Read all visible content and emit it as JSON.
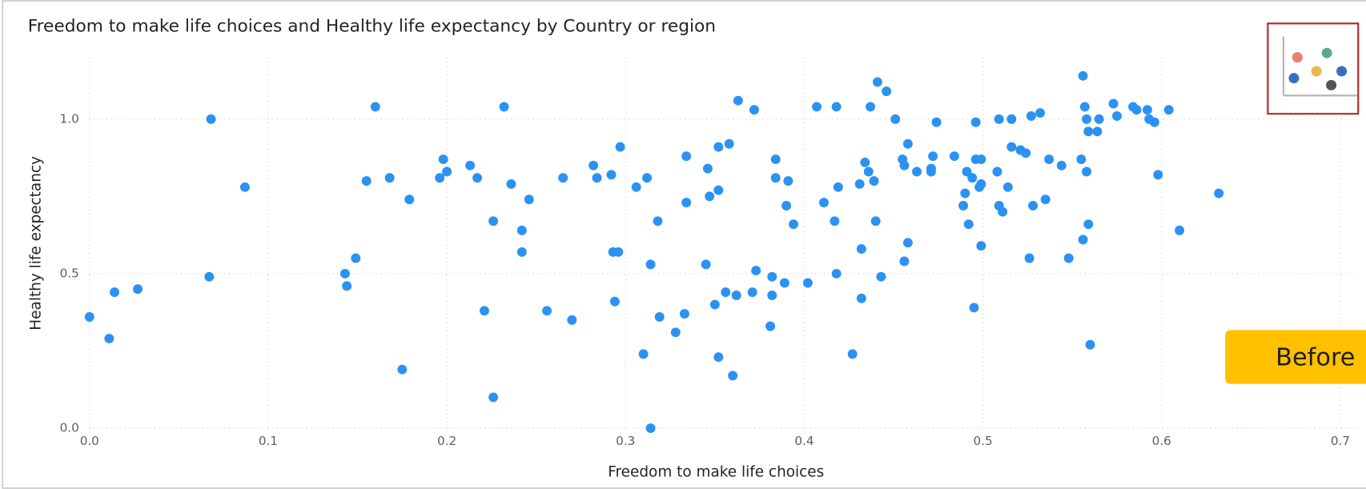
{
  "chart_data": {
    "type": "scatter",
    "title": "Freedom to make life choices and Healthy life expectancy by Country or region",
    "x_label": "Freedom to make life choices",
    "y_label": "Healthy life expectancy",
    "annotation": "Before",
    "color": "#2b92f2",
    "grid": true,
    "xlim": [
      0,
      0.71
    ],
    "ylim": [
      0,
      1.2
    ],
    "xticks": [
      {
        "value": 0,
        "label": "0.0"
      },
      0.1,
      0.2,
      0.3,
      0.4,
      0.5,
      0.6,
      0.7
    ],
    "yticks": [
      {
        "value": 0,
        "label": "0.0"
      },
      0.5,
      {
        "value": 1,
        "label": "1.0"
      }
    ],
    "x": [
      0,
      0.011,
      0.014,
      0.027,
      0.068,
      0.067,
      0.087,
      0.143,
      0.144,
      0.149,
      0.155,
      0.16,
      0.168,
      0.175,
      0.179,
      0.196,
      0.198,
      0.2,
      0.213,
      0.217,
      0.221,
      0.226,
      0.226,
      0.232,
      0.236,
      0.242,
      0.242,
      0.246,
      0.256,
      0.265,
      0.27,
      0.282,
      0.284,
      0.292,
      0.293,
      0.296,
      0.294,
      0.297,
      0.306,
      0.31,
      0.312,
      0.314,
      0.314,
      0.318,
      0.319,
      0.328,
      0.333,
      0.334,
      0.334,
      0.345,
      0.346,
      0.347,
      0.35,
      0.352,
      0.352,
      0.352,
      0.358,
      0.356,
      0.36,
      0.362,
      0.363,
      0.372,
      0.371,
      0.373,
      0.381,
      0.382,
      0.382,
      0.384,
      0.384,
      0.389,
      0.39,
      0.391,
      0.394,
      0.402,
      0.407,
      0.411,
      0.417,
      0.418,
      0.418,
      0.419,
      0.427,
      0.431,
      0.432,
      0.432,
      0.434,
      0.437,
      0.436,
      0.439,
      0.44,
      0.441,
      0.443,
      0.446,
      0.451,
      0.455,
      0.456,
      0.456,
      0.458,
      0.458,
      0.463,
      0.471,
      0.471,
      0.472,
      0.474,
      0.484,
      0.489,
      0.49,
      0.491,
      0.492,
      0.494,
      0.495,
      0.496,
      0.496,
      0.498,
      0.499,
      0.499,
      0.499,
      0.508,
      0.509,
      0.509,
      0.511,
      0.514,
      0.516,
      0.516,
      0.521,
      0.524,
      0.526,
      0.527,
      0.528,
      0.532,
      0.535,
      0.537,
      0.544,
      0.548,
      0.555,
      0.556,
      0.556,
      0.557,
      0.558,
      0.558,
      0.559,
      0.559,
      0.56,
      0.564,
      0.565,
      0.573,
      0.575,
      0.584,
      0.586,
      0.592,
      0.593,
      0.596,
      0.598,
      0.604,
      0.61,
      0.632
    ],
    "values": [
      0.36,
      0.29,
      0.44,
      0.45,
      1.0,
      0.49,
      0.78,
      0.5,
      0.46,
      0.55,
      0.8,
      1.04,
      0.81,
      0.19,
      0.74,
      0.81,
      0.87,
      0.83,
      0.85,
      0.81,
      0.38,
      0.67,
      0.1,
      1.04,
      0.79,
      0.64,
      0.57,
      0.74,
      0.38,
      0.81,
      0.35,
      0.85,
      0.81,
      0.82,
      0.57,
      0.57,
      0.41,
      0.91,
      0.78,
      0.24,
      0.81,
      0.53,
      0.0,
      0.67,
      0.36,
      0.31,
      0.37,
      0.88,
      0.73,
      0.53,
      0.84,
      0.75,
      0.4,
      0.77,
      0.91,
      0.23,
      0.92,
      0.44,
      0.17,
      0.43,
      1.06,
      1.03,
      0.44,
      0.51,
      0.33,
      0.49,
      0.43,
      0.87,
      0.81,
      0.47,
      0.72,
      0.8,
      0.66,
      0.47,
      1.04,
      0.73,
      0.67,
      1.04,
      0.5,
      0.78,
      0.24,
      0.79,
      0.42,
      0.58,
      0.86,
      1.04,
      0.83,
      0.8,
      0.67,
      1.12,
      0.49,
      1.09,
      1.0,
      0.87,
      0.85,
      0.54,
      0.6,
      0.92,
      0.83,
      0.83,
      0.84,
      0.88,
      0.99,
      0.88,
      0.72,
      0.76,
      0.83,
      0.66,
      0.81,
      0.39,
      0.99,
      0.87,
      0.78,
      0.79,
      0.59,
      0.87,
      0.83,
      1.0,
      0.72,
      0.7,
      0.78,
      1.0,
      0.91,
      0.9,
      0.89,
      0.55,
      1.01,
      0.72,
      1.02,
      0.74,
      0.87,
      0.85,
      0.55,
      0.87,
      0.61,
      1.14,
      1.04,
      1.0,
      0.83,
      0.96,
      0.66,
      0.27,
      0.96,
      1.0,
      1.05,
      1.01,
      1.04,
      1.03,
      1.03,
      1.0,
      0.99,
      0.82,
      1.03,
      0.64,
      0.76
    ]
  }
}
